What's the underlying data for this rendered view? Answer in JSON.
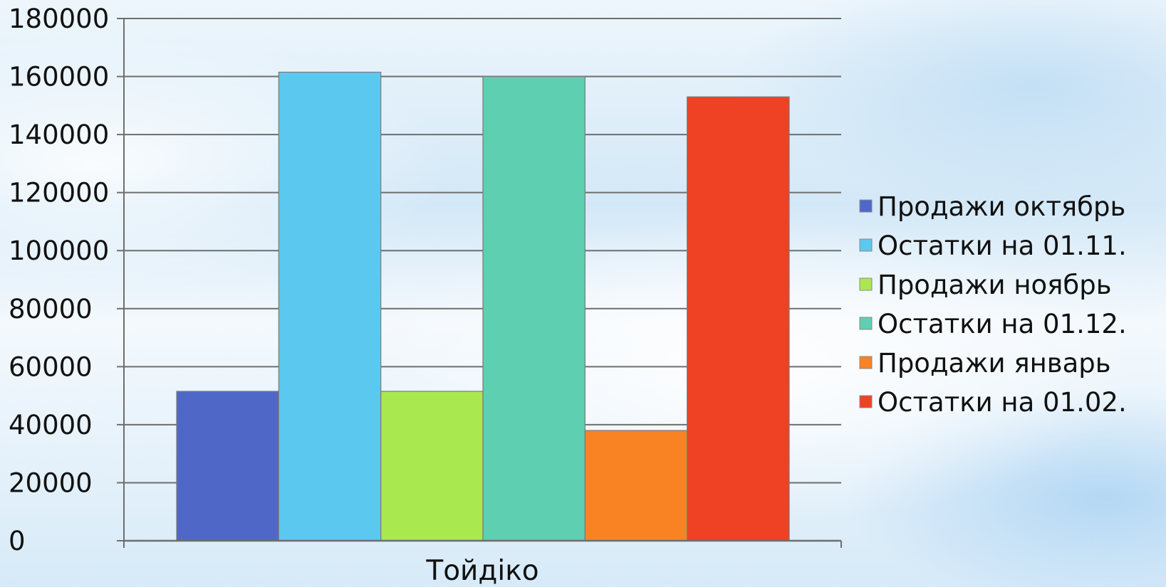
{
  "chart_data": {
    "type": "bar",
    "title": "",
    "xlabel": "",
    "ylabel": "",
    "categories": [
      "Тойдiко"
    ],
    "series": [
      {
        "name": "Продажи октябрь",
        "values": [
          51500
        ],
        "color": "#4f68c8"
      },
      {
        "name": "Остатки на 01.11.",
        "values": [
          161500
        ],
        "color": "#5bc8f0"
      },
      {
        "name": "Продажи ноябрь",
        "values": [
          51500
        ],
        "color": "#a9e84f"
      },
      {
        "name": "Остатки на 01.12.",
        "values": [
          160000
        ],
        "color": "#5ecfb0"
      },
      {
        "name": "Продажи январь",
        "values": [
          38000
        ],
        "color": "#f98322"
      },
      {
        "name": "Остатки на 01.02.",
        "values": [
          153000
        ],
        "color": "#ef4124"
      }
    ],
    "ylim": [
      0,
      180000
    ],
    "yticks": [
      "0",
      "20000",
      "40000",
      "60000",
      "80000",
      "100000",
      "120000",
      "140000",
      "160000",
      "180000"
    ],
    "grid": true,
    "legend": "right"
  }
}
